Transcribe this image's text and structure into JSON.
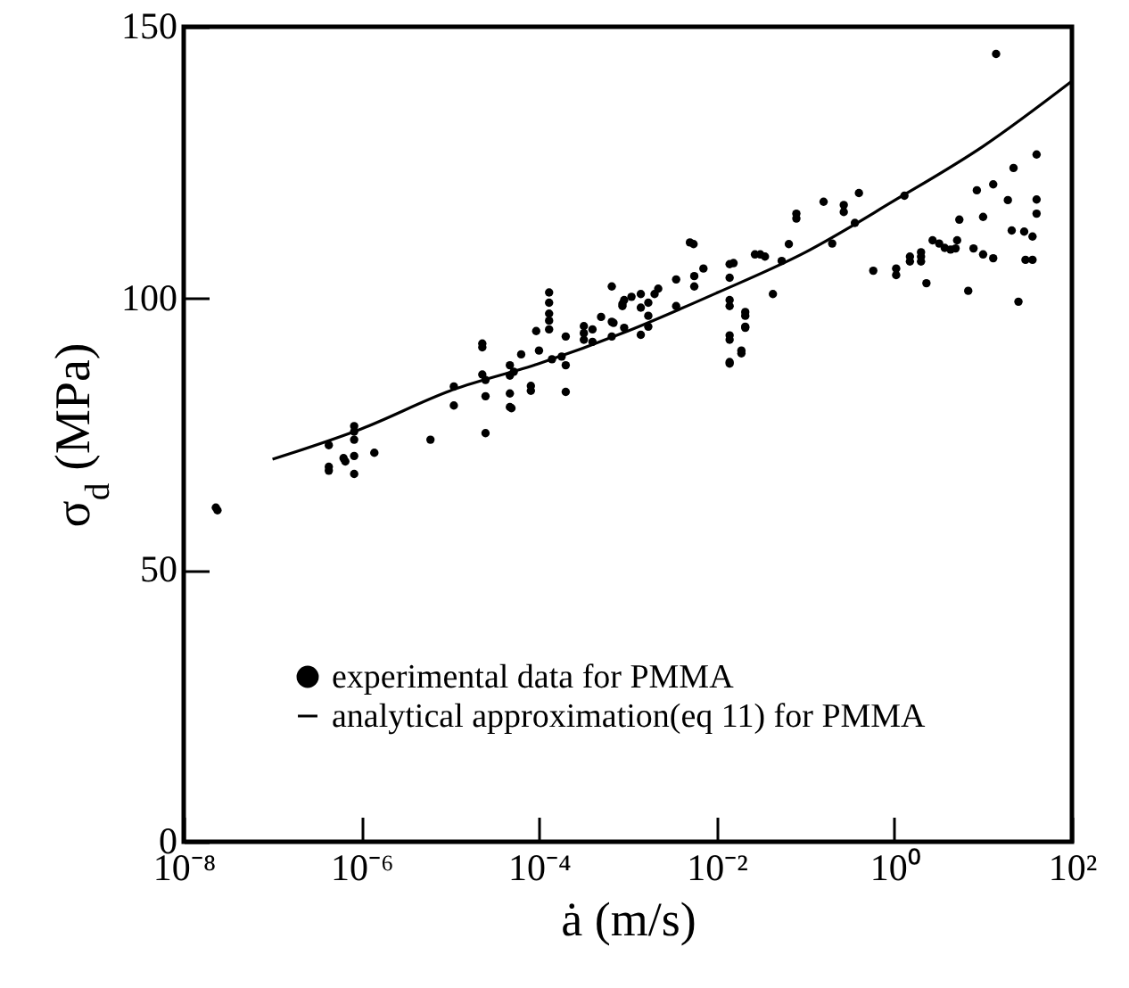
{
  "chart_data": {
    "type": "scatter",
    "xlabel": "ȧ (m/s)",
    "ylabel": "σ$_{d}$ (MPa)",
    "log": "x",
    "xlim": [
      1e-08,
      100
    ],
    "ylim": [
      0,
      150
    ],
    "xticks": [
      {
        "value": 1e-08,
        "label": "10⁻⁸"
      },
      {
        "value": 1e-06,
        "label": "10⁻⁶"
      },
      {
        "value": 0.0001,
        "label": "10⁻⁴"
      },
      {
        "value": 0.01,
        "label": "10⁻²"
      },
      {
        "value": 1,
        "label": "10⁰"
      },
      {
        "value": 100,
        "label": "10²"
      }
    ],
    "yticks": [
      0,
      50,
      100,
      150
    ],
    "grid": false,
    "legend": "bottom left",
    "series": [
      {
        "name": "experimental data for PMMA",
        "color": "#000000",
        "marker": "circle",
        "x": [
          2.3e-08,
          2.4e-08,
          4.3e-07,
          4.3e-07,
          4.3e-07,
          8.3e-07,
          8.3e-07,
          8.3e-07,
          6.3e-07,
          6.6e-07,
          8.3e-07,
          8.3e-07,
          1.4e-06,
          6e-06,
          1.1e-05,
          1.1e-05,
          2.3e-05,
          2.3e-05,
          2.3e-05,
          2.5e-05,
          2.5e-05,
          2.5e-05,
          4.7e-05,
          4.7e-05,
          4.7e-05,
          4.9e-05,
          4.7e-05,
          5.2e-05,
          6.3e-05,
          8.1e-05,
          8.1e-05,
          0.0001,
          9.3e-05,
          0.00013,
          0.00013,
          0.00013,
          0.00013,
          0.00013,
          0.00014,
          0.00018,
          0.0002,
          0.0002,
          0.0002,
          0.00032,
          0.00032,
          0.00032,
          0.0004,
          0.0004,
          0.0005,
          0.00066,
          0.00066,
          0.00066,
          0.00087,
          0.00087,
          0.0011,
          0.00069,
          0.00091,
          0.00091,
          0.0014,
          0.0014,
          0.0014,
          0.0017,
          0.0017,
          0.0017,
          0.002,
          0.0022,
          0.0035,
          0.0035,
          0.005,
          0.0055,
          0.0056,
          0.0056,
          0.0071,
          0.014,
          0.0155,
          0.014,
          0.014,
          0.014,
          0.014,
          0.014,
          0.014,
          0.014,
          0.021,
          0.021,
          0.021,
          0.021,
          0.019,
          0.019,
          0.027,
          0.031,
          0.035,
          0.043,
          0.054,
          0.065,
          0.079,
          0.079,
          0.16,
          0.2,
          0.27,
          0.27,
          0.36,
          0.4,
          0.58,
          1.05,
          1.05,
          1.3,
          1.5,
          1.5,
          2.0,
          2.0,
          2.0,
          2.3,
          2.7,
          3.2,
          3.7,
          4.3,
          4.9,
          5.1,
          5.4,
          6.8,
          7.8,
          8.5,
          10,
          10,
          13,
          14,
          19,
          21,
          25,
          29,
          36,
          36,
          30,
          40,
          40,
          13,
          22,
          40
        ],
        "values": [
          61.5,
          61,
          73,
          69,
          68.3,
          76.5,
          75.5,
          74,
          70.6,
          70,
          71,
          67.7,
          71.6,
          74,
          83.8,
          80.3,
          91.7,
          91,
          86,
          82,
          75.2,
          85,
          85.8,
          82.5,
          80,
          79.8,
          87.7,
          86.5,
          89.7,
          83.9,
          83,
          90.4,
          94,
          101.1,
          99.2,
          97.2,
          95.9,
          94.3,
          88.8,
          89.3,
          93,
          87.7,
          82.8,
          94.9,
          93.6,
          92.4,
          94.3,
          92,
          96.6,
          102.2,
          95.7,
          93,
          98.6,
          99,
          100.3,
          95.5,
          99.7,
          94.6,
          100.8,
          98.3,
          93.3,
          94.8,
          96.8,
          99.2,
          100.8,
          101.8,
          103.5,
          98.6,
          110.3,
          110,
          104.1,
          102.2,
          105.5,
          106.3,
          106.5,
          103.8,
          99.7,
          98.6,
          93.2,
          92.4,
          88,
          88.3,
          97.5,
          96.8,
          94.8,
          94.6,
          90.4,
          89.9,
          108.1,
          108.1,
          107.7,
          100.8,
          106.9,
          110,
          114.7,
          115.6,
          117.8,
          110.1,
          117.2,
          115.9,
          113.9,
          119.4,
          105.1,
          105.5,
          104.3,
          118.9,
          106.8,
          107.7,
          108.5,
          107.7,
          106.8,
          102.8,
          110.7,
          110.1,
          109.3,
          109,
          109.2,
          110.7,
          114.5,
          101.4,
          109.2,
          119.9,
          108.1,
          115,
          107.4,
          145,
          118.1,
          112.5,
          99.4,
          112.3,
          111.4,
          107.1,
          107.1,
          115.6,
          118.2,
          121,
          124,
          126.5
        ]
      },
      {
        "name": "analytical approximation(eq 11) for PMMA",
        "type": "line",
        "color": "#000000",
        "line_style": "solid",
        "x": [
          1e-07,
          1e-06,
          1e-05,
          0.0001,
          0.001,
          0.01,
          0.1,
          1,
          10,
          100
        ],
        "values": [
          70.4,
          76,
          83,
          88,
          94,
          101,
          108.5,
          118,
          128,
          140
        ]
      }
    ]
  }
}
